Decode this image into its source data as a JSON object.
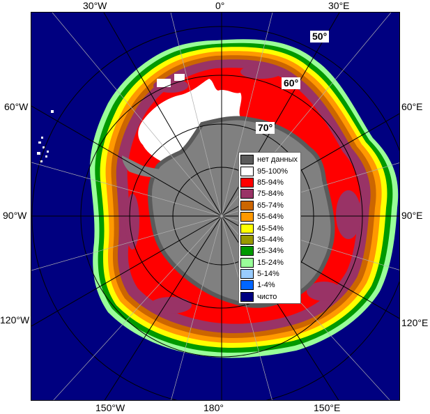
{
  "map": {
    "colors": {
      "ocean": "#000080",
      "no_data": "#808080",
      "grid": "#000000",
      "meridian": "#b0b0b0"
    },
    "lon_labels": {
      "top": [
        "30°W",
        "0°",
        "30°E"
      ],
      "left": [
        "60°W",
        "90°W",
        "120°W"
      ],
      "right": [
        "60°E",
        "90°E",
        "120°E"
      ],
      "bottom": [
        "150°W",
        "180°",
        "150°E"
      ]
    },
    "lat_labels": [
      "50°",
      "60°",
      "70°"
    ]
  },
  "legend": {
    "items": [
      {
        "label": "нет данных",
        "color": "#5a5a5a"
      },
      {
        "label": "95-100%",
        "color": "#ffffff"
      },
      {
        "label": "85-94%",
        "color": "#ff0000"
      },
      {
        "label": "75-84%",
        "color": "#993366"
      },
      {
        "label": "65-74%",
        "color": "#cc6600"
      },
      {
        "label": "55-64%",
        "color": "#ff9900"
      },
      {
        "label": "45-54%",
        "color": "#ffff00"
      },
      {
        "label": "35-44%",
        "color": "#999900"
      },
      {
        "label": "25-34%",
        "color": "#009900"
      },
      {
        "label": "15-24%",
        "color": "#99ff99"
      },
      {
        "label": "5-14%",
        "color": "#99ccff"
      },
      {
        "label": "1-4%",
        "color": "#0066ff"
      },
      {
        "label": "чисто",
        "color": "#000080"
      }
    ]
  }
}
